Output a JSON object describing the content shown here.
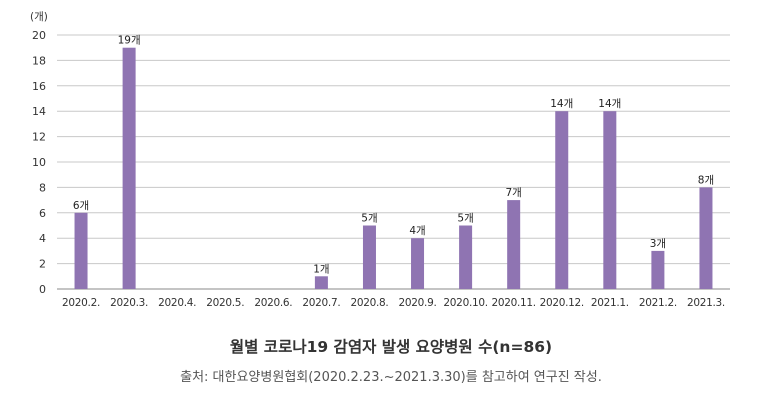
{
  "chart_data": {
    "type": "bar",
    "unit_label": "(개)",
    "categories": [
      "2020.2.",
      "2020.3.",
      "2020.4.",
      "2020.5.",
      "2020.6.",
      "2020.7.",
      "2020.8.",
      "2020.9.",
      "2020.10.",
      "2020.11.",
      "2020.12.",
      "2021.1.",
      "2021.2.",
      "2021.3."
    ],
    "values": [
      6,
      19,
      0,
      0,
      0,
      1,
      5,
      4,
      5,
      7,
      14,
      14,
      3,
      8
    ],
    "data_labels": [
      "6개",
      "19개",
      "",
      "",
      "",
      "1개",
      "5개",
      "4개",
      "5개",
      "7개",
      "14개",
      "14개",
      "3개",
      "8개"
    ],
    "yticks": [
      0,
      2,
      4,
      6,
      8,
      10,
      12,
      14,
      16,
      18,
      20
    ],
    "ylim": [
      0,
      20
    ],
    "grid": true,
    "bar_color": "#8f74b2",
    "title": "월별 코로나19 감염자 발생 요양병원 수(n=86)",
    "source": "출처: 대한요양병원협회(2020.2.23.~2021.3.30)를 참고하여 연구진 작성."
  }
}
